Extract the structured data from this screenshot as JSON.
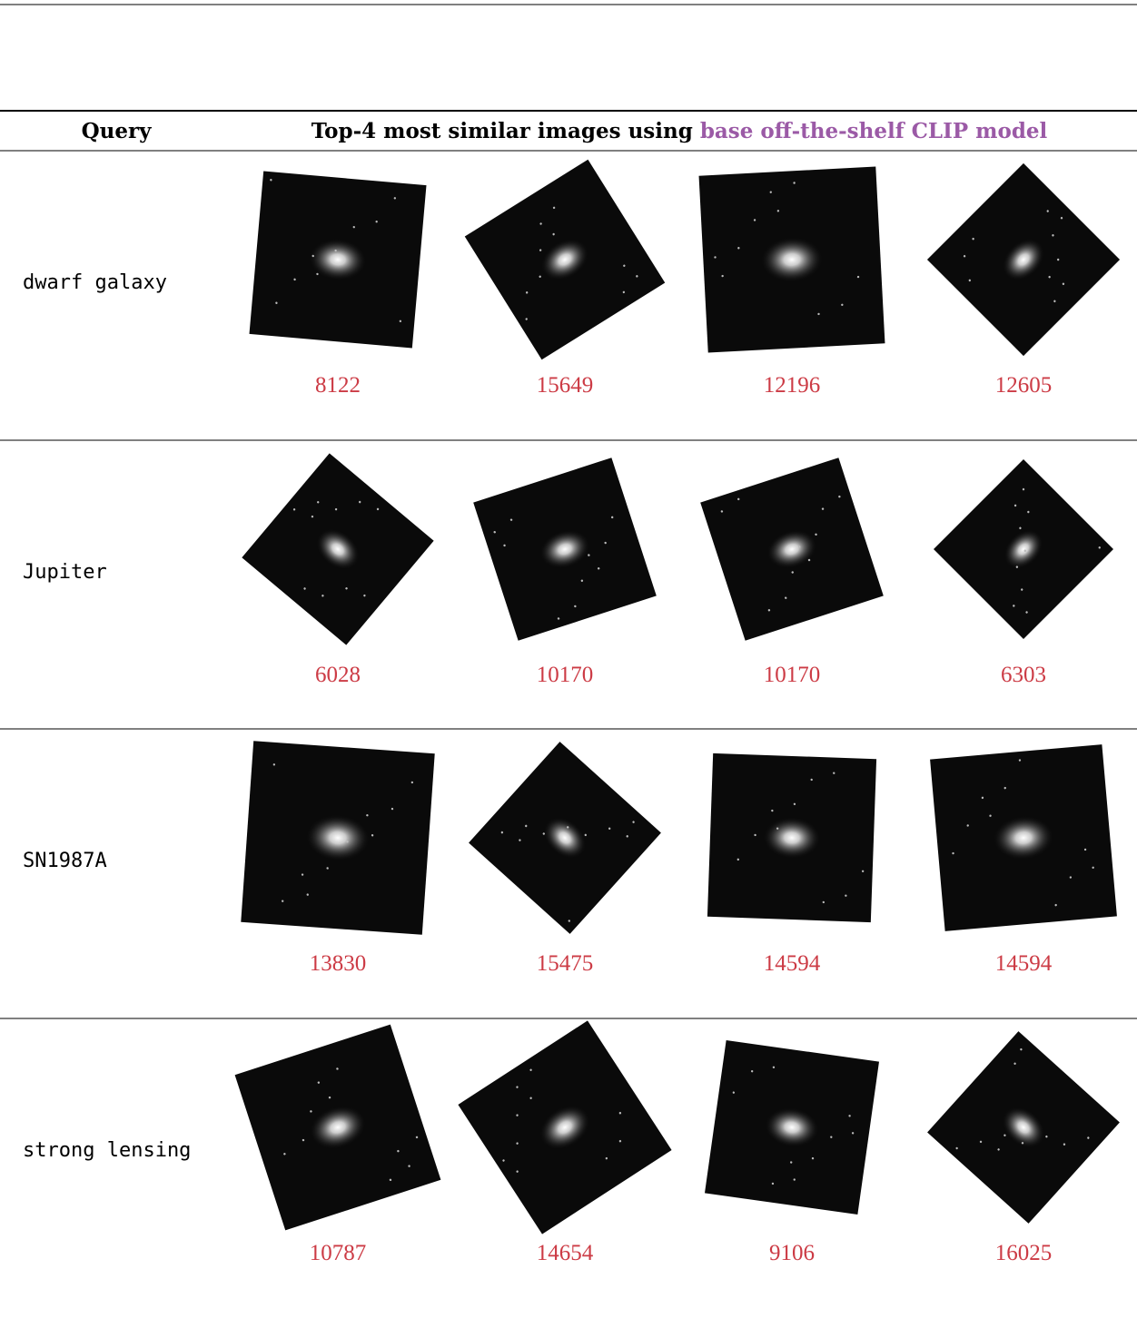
{
  "header": {
    "query": "Query",
    "title_prefix": "Top-4 most similar images using",
    "title_highlight": "base off-the-shelf CLIP model"
  },
  "rows": [
    {
      "query": "dwarf galaxy",
      "ids": [
        "8122",
        "15649",
        "12196",
        "12605"
      ]
    },
    {
      "query": "Jupiter",
      "ids": [
        "6028",
        "10170",
        "10170",
        "6303"
      ]
    },
    {
      "query": "SN1987A",
      "ids": [
        "13830",
        "15475",
        "14594",
        "14594"
      ]
    },
    {
      "query": "strong lensing",
      "ids": [
        "10787",
        "14654",
        "9106",
        "16025"
      ]
    }
  ]
}
